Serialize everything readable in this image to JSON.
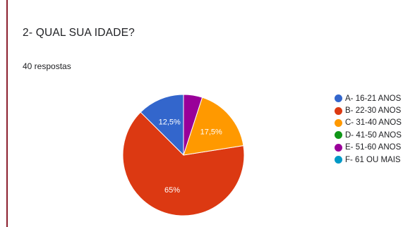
{
  "question": {
    "title": "2-  QUAL SUA IDADE?",
    "responses": "40 respostas"
  },
  "chart_data": {
    "type": "pie",
    "categories": [
      "A- 16-21 ANOS",
      "B- 22-30 ANOS",
      "C- 31-40 ANOS",
      "D- 41-50 ANOS",
      "E- 51-60 ANOS",
      "F- 61 OU MAIS"
    ],
    "values": [
      12.5,
      65,
      17.5,
      0,
      5,
      0
    ],
    "data_labels": [
      "12,5%",
      "65%",
      "17,5%",
      "",
      "",
      ""
    ],
    "colors": [
      "#3366cc",
      "#dc3912",
      "#ff9900",
      "#109618",
      "#990099",
      "#0099c6"
    ],
    "start_angle_deg": 90,
    "direction": "counterclockwise",
    "legend_position": "right"
  }
}
